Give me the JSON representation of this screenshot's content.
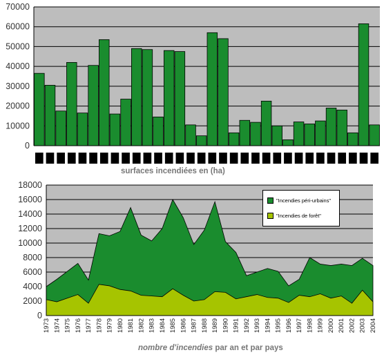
{
  "chart_data": [
    {
      "type": "bar",
      "title": "",
      "xlabel": "surfaces incendiées en (ha)",
      "ylabel": "",
      "ylim": [
        0,
        70000
      ],
      "yticks": [
        "0",
        "10000",
        "20000",
        "30000",
        "40000",
        "50000",
        "60000",
        "70000"
      ],
      "categories_note": "x tick labels rendered as black blocks (illegible)",
      "values": [
        36500,
        30500,
        17500,
        42000,
        16500,
        40500,
        53500,
        16000,
        23500,
        49000,
        48500,
        14500,
        48000,
        47500,
        10500,
        5000,
        57000,
        54000,
        6500,
        12800,
        11800,
        22500,
        10000,
        3000,
        12000,
        11000,
        12500,
        19000,
        18000,
        6500,
        61500,
        10500
      ],
      "colors": {
        "bar": "#1a8c2e",
        "plot_bg": "#bdbdbd",
        "grid": "#000000"
      }
    },
    {
      "type": "area",
      "title": "",
      "xlabel_italic": "nombre d'incendies",
      "xlabel_rest": " par an et par pays",
      "ylabel": "",
      "ylim": [
        0,
        18000
      ],
      "yticks": [
        "0",
        "2000",
        "4000",
        "6000",
        "8000",
        "10000",
        "12000",
        "14000",
        "16000",
        "18000"
      ],
      "x": [
        "1973",
        "1974",
        "1975",
        "1976",
        "1977",
        "1978",
        "1979",
        "1980",
        "1981",
        "1982",
        "1983",
        "1984",
        "1985",
        "1986",
        "1987",
        "1988",
        "1989",
        "1990",
        "1991",
        "1992",
        "1993",
        "1994",
        "1995",
        "1996",
        "1997",
        "1998",
        "1999",
        "2000",
        "2001",
        "2002",
        "2003",
        "2004"
      ],
      "series": [
        {
          "name": "\"Incendies péri-urbains\"",
          "color": "#1a8c2e",
          "values": [
            4000,
            5000,
            6100,
            7200,
            4900,
            11300,
            11000,
            11600,
            14900,
            11100,
            10300,
            12000,
            16000,
            13500,
            9800,
            11800,
            15700,
            10200,
            8700,
            5500,
            6000,
            6500,
            6100,
            4100,
            5000,
            8000,
            7100,
            6900,
            7100,
            6900,
            7900,
            6900
          ]
        },
        {
          "name": "\"Incendies de forêt\"",
          "color": "#a6c400",
          "values": [
            2200,
            1900,
            2400,
            2900,
            1700,
            4300,
            4100,
            3600,
            3400,
            2800,
            2700,
            2600,
            3700,
            2800,
            2000,
            2200,
            3300,
            3200,
            2300,
            2600,
            2900,
            2500,
            2400,
            1800,
            2800,
            2600,
            3000,
            2400,
            2700,
            1700,
            3500,
            1900
          ]
        }
      ],
      "legend_position": "top-right",
      "colors": {
        "plot_bg": "#bdbdbd",
        "grid": "#000000"
      }
    }
  ]
}
